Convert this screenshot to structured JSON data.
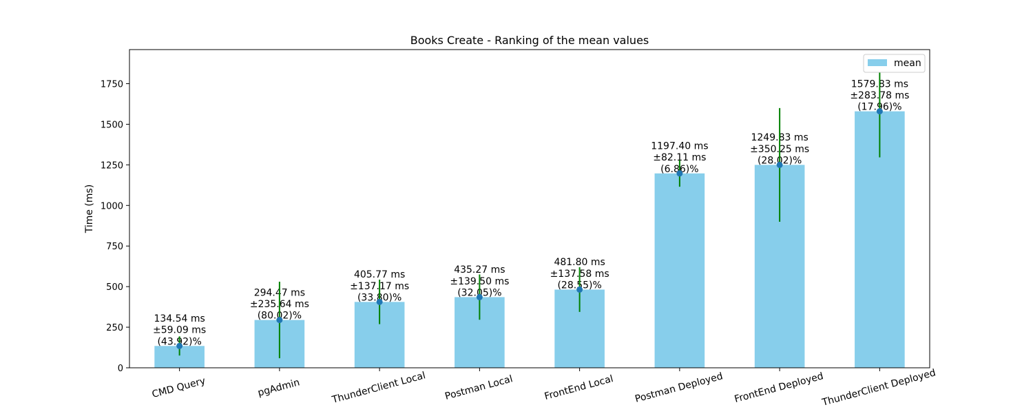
{
  "chart_data": {
    "type": "bar",
    "title": "Books Create - Ranking of the mean values",
    "xlabel": "",
    "ylabel": "Time (ms)",
    "ylim": [
      0,
      1960
    ],
    "yticks": [
      0,
      250,
      500,
      750,
      1000,
      1250,
      1500,
      1750
    ],
    "ytick_labels": [
      "0",
      "250",
      "500",
      "750",
      "1000",
      "1250",
      "1500",
      "1750"
    ],
    "categories": [
      "CMD Query",
      "pgAdmin",
      "ThunderClient Local",
      "Postman Local",
      "FrontEnd Local",
      "Postman Deployed",
      "FrontEnd Deployed",
      "ThunderClient Deployed"
    ],
    "series": [
      {
        "name": "mean",
        "values": [
          134.54,
          294.47,
          405.77,
          435.27,
          481.8,
          1197.4,
          1249.83,
          1579.83
        ],
        "error": [
          59.09,
          235.64,
          137.17,
          139.5,
          137.58,
          82.11,
          350.25,
          283.78
        ]
      }
    ],
    "data_labels": [
      [
        "134.54 ms",
        "±59.09 ms",
        "(43.92)%"
      ],
      [
        "294.47 ms",
        "±235.64 ms",
        "(80.02)%"
      ],
      [
        "405.77 ms",
        "±137.17 ms",
        "(33.80)%"
      ],
      [
        "435.27 ms",
        "±139.50 ms",
        "(32.05)%"
      ],
      [
        "481.80 ms",
        "±137.58 ms",
        "(28.55)%"
      ],
      [
        "1197.40 ms",
        "±82.11 ms",
        "(6.86)%"
      ],
      [
        "1249.83 ms",
        "±350.25 ms",
        "(28.02)%"
      ],
      [
        "1579.83 ms",
        "±283.78 ms",
        "(17.96)%"
      ]
    ],
    "legend": {
      "placement": "top-right",
      "entries": [
        "mean"
      ]
    },
    "grid": false,
    "x_tick_rotation_deg": 15,
    "colors": {
      "bar": "#87ceeb",
      "error": "#008000",
      "point": "#1f77b4",
      "axis": "#000000"
    }
  }
}
